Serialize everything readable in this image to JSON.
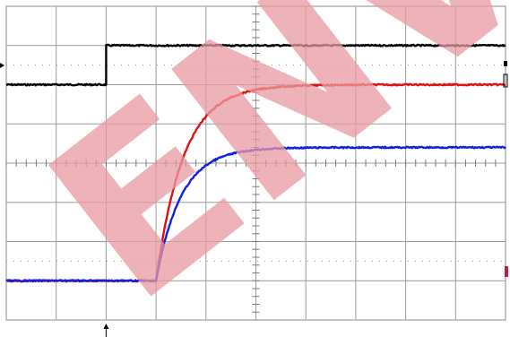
{
  "chart_data": {
    "type": "line",
    "title": "",
    "xlabel": "",
    "ylabel": "",
    "grid": true,
    "grid_divisions": {
      "x": 10,
      "y": 8
    },
    "xlim": [
      -2,
      8
    ],
    "ylim": [
      -4,
      4
    ],
    "trigger_time": 0,
    "series": [
      {
        "color": "#000000",
        "shape": "step",
        "low": 2.0,
        "high": 3.0,
        "step_at": 0
      },
      {
        "color": "#e01010",
        "shape": "rise",
        "start": -3.0,
        "final": 2.0,
        "rise_start": 1.0,
        "tau": 0.55
      },
      {
        "color": "#1020e0",
        "shape": "rise",
        "start": -3.0,
        "final": 0.4,
        "rise_start": 1.0,
        "tau": 0.5
      }
    ]
  },
  "watermark": {
    "text": "ENV",
    "color": "#e89aa0"
  }
}
